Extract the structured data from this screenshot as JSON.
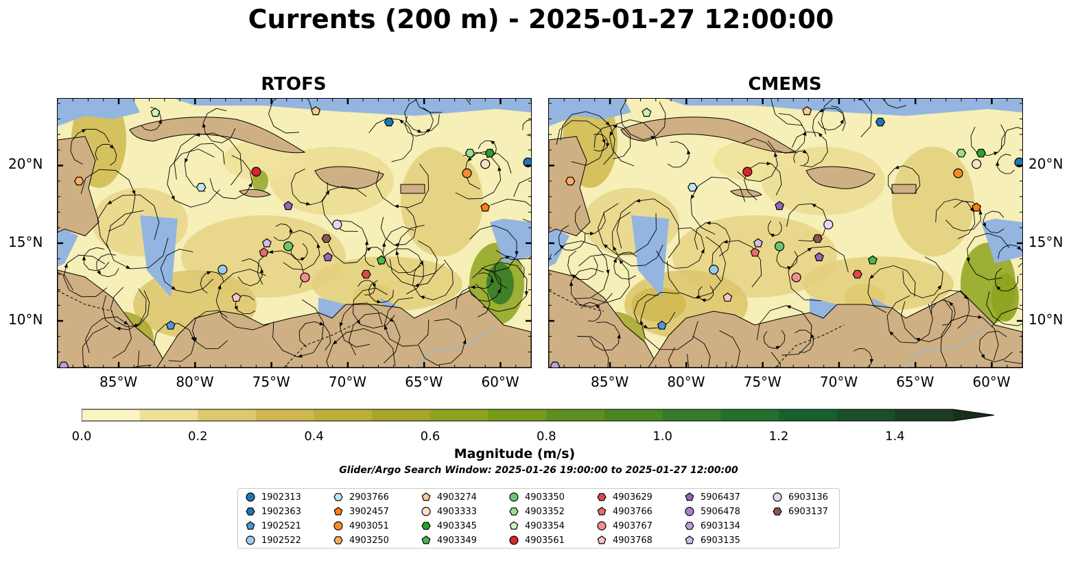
{
  "title": "Currents (200 m) - 2025-01-27 12:00:00",
  "panels": [
    {
      "name": "RTOFS"
    },
    {
      "name": "CMEMS"
    }
  ],
  "lon_ticks": [
    "85°W",
    "80°W",
    "75°W",
    "70°W",
    "65°W",
    "60°W"
  ],
  "lat_ticks": [
    "20°N",
    "15°N",
    "10°N"
  ],
  "map_extent": {
    "lon": [
      -89,
      -58
    ],
    "lat": [
      7,
      24.3
    ]
  },
  "colors": {
    "land": "#cfb084",
    "shallow": "#93b5e0",
    "ocean_low": "#f6efb7",
    "stream": "#000000"
  },
  "colorbar": {
    "label": "Magnitude (m/s)",
    "range": [
      0,
      1.5
    ],
    "tick_labels": [
      "0.0",
      "0.2",
      "0.4",
      "0.6",
      "0.8",
      "1.0",
      "1.2",
      "1.4"
    ],
    "colors": [
      "#fbf5c3",
      "#efe19a",
      "#dfc970",
      "#cfb84d",
      "#bcae3a",
      "#a6a52c",
      "#8ea31f",
      "#769b1a",
      "#5f8f20",
      "#4a8523",
      "#357b28",
      "#21702e",
      "#17612e",
      "#1b4f2a",
      "#1d3d23",
      "#1a2e19"
    ]
  },
  "subtitle": "Glider/Argo Search Window: 2025-01-26 19:00:00 to 2025-01-27 12:00:00",
  "legend": [
    {
      "id": "1902313",
      "shape": "circle",
      "color": "#1f77b4"
    },
    {
      "id": "1902363",
      "shape": "hexagon",
      "color": "#1f77b4"
    },
    {
      "id": "1902521",
      "shape": "pentagon",
      "color": "#4a9ad4"
    },
    {
      "id": "1902522",
      "shape": "circle",
      "color": "#9ccbed"
    },
    {
      "id": "2903766",
      "shape": "hexagon",
      "color": "#bfe6f5"
    },
    {
      "id": "3902457",
      "shape": "pentagon",
      "color": "#ff7f0e"
    },
    {
      "id": "4903051",
      "shape": "circle",
      "color": "#f28d2f"
    },
    {
      "id": "4903250",
      "shape": "hexagon",
      "color": "#fdac63"
    },
    {
      "id": "4903274",
      "shape": "pentagon",
      "color": "#ffc994"
    },
    {
      "id": "4903333",
      "shape": "circle",
      "color": "#fde0c5"
    },
    {
      "id": "4903345",
      "shape": "hexagon",
      "color": "#2ca02c"
    },
    {
      "id": "4903349",
      "shape": "pentagon",
      "color": "#4cb84c"
    },
    {
      "id": "4903350",
      "shape": "circle",
      "color": "#6dc46d"
    },
    {
      "id": "4903352",
      "shape": "hexagon",
      "color": "#98df8a"
    },
    {
      "id": "4903354",
      "shape": "pentagon",
      "color": "#c9f2c0"
    },
    {
      "id": "4903561",
      "shape": "circle",
      "color": "#d62728"
    },
    {
      "id": "4903629",
      "shape": "hexagon",
      "color": "#e04848"
    },
    {
      "id": "4903766",
      "shape": "pentagon",
      "color": "#ea6a6b"
    },
    {
      "id": "4903767",
      "shape": "circle",
      "color": "#f08f8f"
    },
    {
      "id": "4903768",
      "shape": "pentagon",
      "color": "#fbc4c4"
    },
    {
      "id": "5906437",
      "shape": "pentagon",
      "color": "#9467bd"
    },
    {
      "id": "5906478",
      "shape": "circle",
      "color": "#a882cc"
    },
    {
      "id": "6903134",
      "shape": "hexagon",
      "color": "#bca0dc"
    },
    {
      "id": "6903135",
      "shape": "pentagon",
      "color": "#d2bbea"
    },
    {
      "id": "6903136",
      "shape": "circle",
      "color": "#e6d6f6"
    },
    {
      "id": "6903137",
      "shape": "hexagon",
      "color": "#8c564b"
    }
  ],
  "floats": {
    "RTOFS": [
      {
        "id": "1902313",
        "lon": -58.2,
        "lat": 20.2
      },
      {
        "id": "4903354",
        "lon": -82.6,
        "lat": 23.4
      },
      {
        "id": "4903274",
        "lon": -72.1,
        "lat": 23.5
      },
      {
        "id": "1902363",
        "lon": -67.3,
        "lat": 22.8
      },
      {
        "id": "4903352",
        "lon": -62.0,
        "lat": 20.8
      },
      {
        "id": "4903345",
        "lon": -60.7,
        "lat": 20.8
      },
      {
        "id": "4903333",
        "lon": -61.0,
        "lat": 20.1
      },
      {
        "id": "4903051",
        "lon": -62.2,
        "lat": 19.5
      },
      {
        "id": "4903561",
        "lon": -76.0,
        "lat": 19.6
      },
      {
        "id": "4903250",
        "lon": -87.6,
        "lat": 19.0
      },
      {
        "id": "2903766",
        "lon": -79.6,
        "lat": 18.6
      },
      {
        "id": "5906437",
        "lon": -73.9,
        "lat": 17.4
      },
      {
        "id": "3902457",
        "lon": -61.0,
        "lat": 17.3
      },
      {
        "id": "6903136",
        "lon": -70.7,
        "lat": 16.2
      },
      {
        "id": "6903135",
        "lon": -75.3,
        "lat": 15.0
      },
      {
        "id": "4903350",
        "lon": -73.9,
        "lat": 14.8
      },
      {
        "id": "6903137",
        "lon": -71.4,
        "lat": 15.3
      },
      {
        "id": "4903766",
        "lon": -75.5,
        "lat": 14.4
      },
      {
        "id": "5906437",
        "lon": -71.3,
        "lat": 14.1
      },
      {
        "id": "4903349",
        "lon": -67.8,
        "lat": 13.9
      },
      {
        "id": "1902522",
        "lon": -78.2,
        "lat": 13.3
      },
      {
        "id": "4903767",
        "lon": -72.8,
        "lat": 12.8
      },
      {
        "id": "4903629",
        "lon": -68.8,
        "lat": 13.0
      },
      {
        "id": "4903768",
        "lon": -77.3,
        "lat": 11.5
      },
      {
        "id": "1902521",
        "lon": -81.6,
        "lat": 9.7
      },
      {
        "id": "6903134",
        "lon": -88.6,
        "lat": 7.1
      }
    ],
    "CMEMS": [
      {
        "id": "1902313",
        "lon": -58.2,
        "lat": 20.2
      },
      {
        "id": "4903354",
        "lon": -82.6,
        "lat": 23.4
      },
      {
        "id": "4903274",
        "lon": -72.1,
        "lat": 23.5
      },
      {
        "id": "1902363",
        "lon": -67.3,
        "lat": 22.8
      },
      {
        "id": "4903352",
        "lon": -62.0,
        "lat": 20.8
      },
      {
        "id": "4903345",
        "lon": -60.7,
        "lat": 20.8
      },
      {
        "id": "4903333",
        "lon": -61.0,
        "lat": 20.1
      },
      {
        "id": "4903051",
        "lon": -62.2,
        "lat": 19.5
      },
      {
        "id": "4903561",
        "lon": -76.0,
        "lat": 19.6
      },
      {
        "id": "4903250",
        "lon": -87.6,
        "lat": 19.0
      },
      {
        "id": "2903766",
        "lon": -79.6,
        "lat": 18.6
      },
      {
        "id": "5906437",
        "lon": -73.9,
        "lat": 17.4
      },
      {
        "id": "3902457",
        "lon": -61.0,
        "lat": 17.3
      },
      {
        "id": "6903136",
        "lon": -70.7,
        "lat": 16.2
      },
      {
        "id": "6903135",
        "lon": -75.3,
        "lat": 15.0
      },
      {
        "id": "4903350",
        "lon": -73.9,
        "lat": 14.8
      },
      {
        "id": "6903137",
        "lon": -71.4,
        "lat": 15.3
      },
      {
        "id": "4903766",
        "lon": -75.5,
        "lat": 14.4
      },
      {
        "id": "5906437",
        "lon": -71.3,
        "lat": 14.1
      },
      {
        "id": "4903349",
        "lon": -67.8,
        "lat": 13.9
      },
      {
        "id": "1902522",
        "lon": -78.2,
        "lat": 13.3
      },
      {
        "id": "4903767",
        "lon": -72.8,
        "lat": 12.8
      },
      {
        "id": "4903629",
        "lon": -68.8,
        "lat": 13.0
      },
      {
        "id": "4903768",
        "lon": -77.3,
        "lat": 11.5
      },
      {
        "id": "1902521",
        "lon": -81.6,
        "lat": 9.7
      },
      {
        "id": "6903134",
        "lon": -88.6,
        "lat": 7.1
      }
    ]
  }
}
